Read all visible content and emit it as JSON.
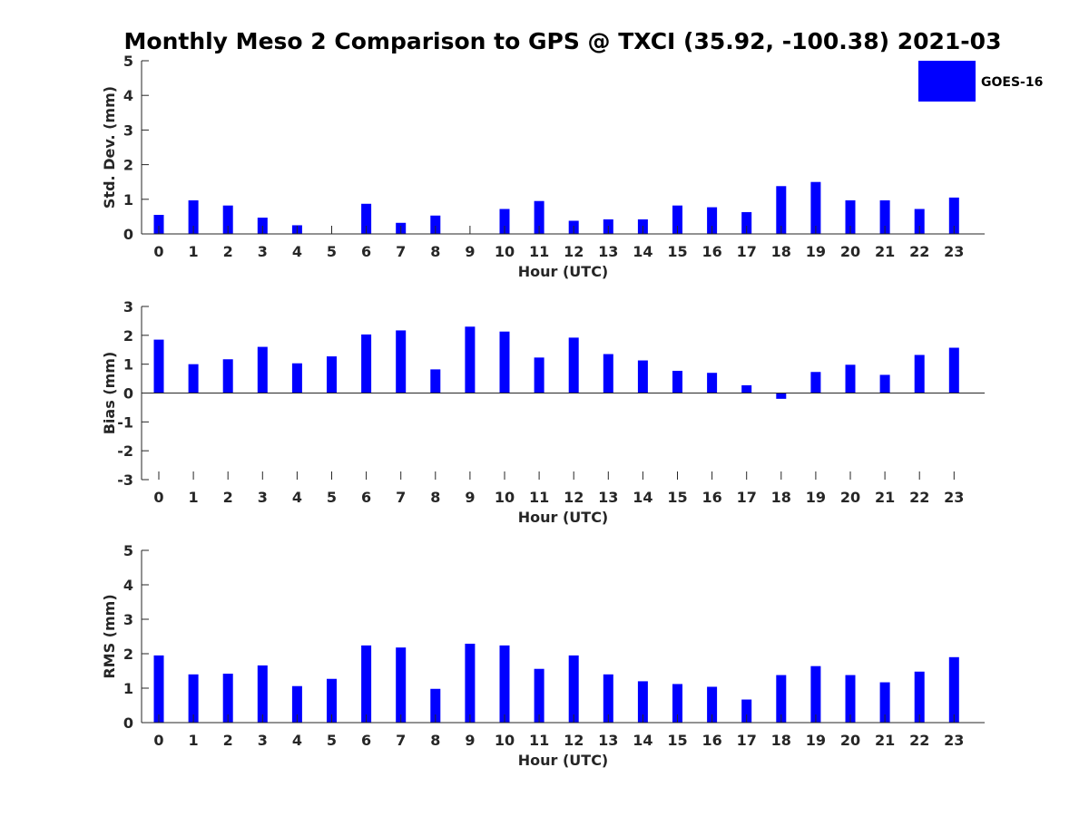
{
  "title": "Monthly Meso 2 Comparison to GPS @ TXCI (35.92, -100.38) 2021-03",
  "legend": {
    "label": "GOES-16"
  },
  "colors": {
    "bar": "#0000ff",
    "axis": "#262626",
    "text": "#000000"
  },
  "chart_data": [
    {
      "type": "bar",
      "title": "Monthly Meso 2 Comparison to GPS @ TXCI (35.92, -100.38) 2021-03",
      "xlabel": "Hour (UTC)",
      "ylabel": "Std. Dev. (mm)",
      "categories": [
        "0",
        "1",
        "2",
        "3",
        "4",
        "5",
        "6",
        "7",
        "8",
        "9",
        "10",
        "11",
        "12",
        "13",
        "14",
        "15",
        "16",
        "17",
        "18",
        "19",
        "20",
        "21",
        "22",
        "23"
      ],
      "yticks": [
        "0",
        "1",
        "2",
        "3",
        "4",
        "5"
      ],
      "ylim": [
        0,
        5
      ],
      "legend": "top-right",
      "series": [
        {
          "name": "GOES-16",
          "values": [
            0.55,
            0.97,
            0.82,
            0.47,
            0.25,
            0.0,
            0.87,
            0.32,
            0.53,
            0.0,
            0.72,
            0.95,
            0.38,
            0.42,
            0.42,
            0.82,
            0.77,
            0.63,
            1.38,
            1.5,
            0.97,
            0.97,
            0.72,
            1.05
          ]
        }
      ]
    },
    {
      "type": "bar",
      "title": "",
      "xlabel": "Hour (UTC)",
      "ylabel": "Bias (mm)",
      "categories": [
        "0",
        "1",
        "2",
        "3",
        "4",
        "5",
        "6",
        "7",
        "8",
        "9",
        "10",
        "11",
        "12",
        "13",
        "14",
        "15",
        "16",
        "17",
        "18",
        "19",
        "20",
        "21",
        "22",
        "23"
      ],
      "yticks": [
        "-3",
        "-2",
        "-1",
        "0",
        "1",
        "2",
        "3"
      ],
      "ylim": [
        -3,
        3
      ],
      "series": [
        {
          "name": "GOES-16",
          "values": [
            1.85,
            1.0,
            1.17,
            1.6,
            1.03,
            1.27,
            2.03,
            2.17,
            0.82,
            2.3,
            2.13,
            1.23,
            1.92,
            1.35,
            1.13,
            0.77,
            0.7,
            0.27,
            -0.2,
            0.73,
            0.98,
            0.63,
            1.32,
            1.57
          ]
        }
      ]
    },
    {
      "type": "bar",
      "title": "",
      "xlabel": "Hour (UTC)",
      "ylabel": "RMS (mm)",
      "categories": [
        "0",
        "1",
        "2",
        "3",
        "4",
        "5",
        "6",
        "7",
        "8",
        "9",
        "10",
        "11",
        "12",
        "13",
        "14",
        "15",
        "16",
        "17",
        "18",
        "19",
        "20",
        "21",
        "22",
        "23"
      ],
      "yticks": [
        "0",
        "1",
        "2",
        "3",
        "4",
        "5"
      ],
      "ylim": [
        0,
        5
      ],
      "series": [
        {
          "name": "GOES-16",
          "values": [
            1.95,
            1.4,
            1.42,
            1.66,
            1.06,
            1.27,
            2.24,
            2.18,
            0.98,
            2.29,
            2.24,
            1.56,
            1.95,
            1.4,
            1.2,
            1.12,
            1.04,
            0.67,
            1.38,
            1.64,
            1.38,
            1.17,
            1.48,
            1.9
          ]
        }
      ]
    }
  ]
}
